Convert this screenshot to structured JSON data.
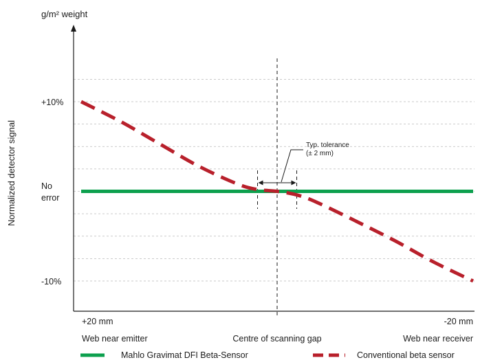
{
  "chart_data": {
    "type": "line",
    "title": "",
    "ylabel": "Normalized detector signal",
    "y_axis_unit": "g/m² weight",
    "y_ticks": [
      "+10%",
      "No error",
      "-10%"
    ],
    "x_ticks": {
      "left": "+20 mm",
      "right": "-20 mm"
    },
    "x_positions": {
      "left": "Web near emitter",
      "center": "Centre of scanning gap",
      "right": "Web near receiver"
    },
    "xlim": [
      20,
      -20
    ],
    "ylim": [
      -10,
      10
    ],
    "grid": true,
    "grid_lines_y": [
      10,
      5,
      0,
      -5,
      -10
    ],
    "series": [
      {
        "name": "Mahlo Gravimat DFI Beta-Sensor",
        "color": "#0da04e",
        "style": "solid",
        "x": [
          20,
          -20
        ],
        "y": [
          0,
          0
        ]
      },
      {
        "name": "Conventional beta sensor",
        "color": "#b8202b",
        "style": "dashed",
        "x": [
          20,
          16,
          12,
          8,
          4,
          2,
          0,
          -2,
          -4,
          -8,
          -12,
          -16,
          -20
        ],
        "y": [
          10,
          7.8,
          5.3,
          2.8,
          0.8,
          0.2,
          0,
          -0.4,
          -1.2,
          -3.3,
          -5.5,
          -7.9,
          -10
        ]
      }
    ],
    "annotations": {
      "tolerance_label": "Typ. tolerance",
      "tolerance_value": "(± 2 mm)",
      "tolerance_range": [
        2,
        -2
      ]
    },
    "legend_position": "bottom"
  }
}
